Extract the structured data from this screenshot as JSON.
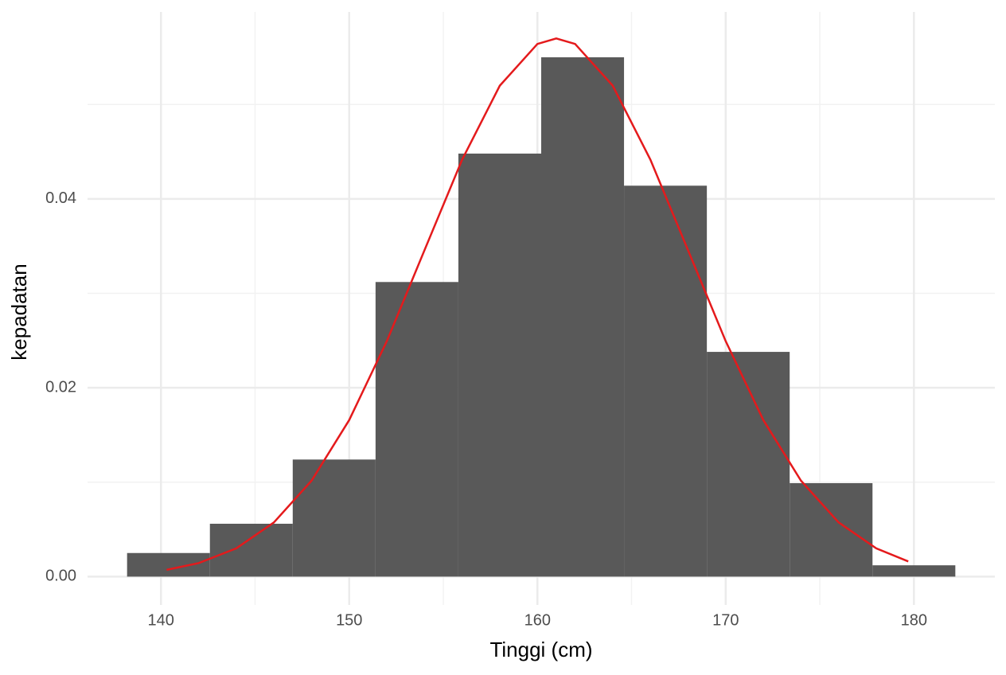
{
  "chart_data": {
    "type": "histogram",
    "x_label": "Tinggi (cm)",
    "y_label": "kepadatan",
    "bins": [
      138.2,
      142.6,
      147.0,
      151.4,
      155.8,
      160.2,
      164.6,
      169.0,
      173.4,
      177.8,
      182.2
    ],
    "values": [
      0.0025,
      0.0056,
      0.0124,
      0.0312,
      0.0448,
      0.055,
      0.0414,
      0.0238,
      0.0099,
      0.0012
    ],
    "color": "#595959",
    "curve": {
      "color": "#e41a1c",
      "x": [
        140.3,
        142,
        144,
        146,
        148,
        150,
        152,
        154,
        156,
        158,
        160,
        161,
        162,
        164,
        166,
        168,
        170,
        172,
        174,
        176,
        178,
        179.7
      ],
      "values": [
        0.00072,
        0.00143,
        0.00299,
        0.00574,
        0.01016,
        0.01658,
        0.02494,
        0.03457,
        0.04416,
        0.05199,
        0.05641,
        0.05699,
        0.05641,
        0.05199,
        0.04416,
        0.03457,
        0.02494,
        0.01658,
        0.01016,
        0.00574,
        0.00299,
        0.00161
      ]
    },
    "xlim": [
      136.1,
      184.3
    ],
    "ylim": [
      -0.003,
      0.0598
    ],
    "xticks": [
      140,
      150,
      160,
      170,
      180
    ],
    "yticks": [
      {
        "value": 0,
        "label": "0.00"
      },
      {
        "value": 0.02,
        "label": "0.02"
      },
      {
        "value": 0.04,
        "label": "0.04"
      }
    ],
    "xminor": [
      145,
      155,
      165,
      175
    ],
    "yminor": [
      0.01,
      0.03,
      0.05
    ],
    "grid": true
  }
}
